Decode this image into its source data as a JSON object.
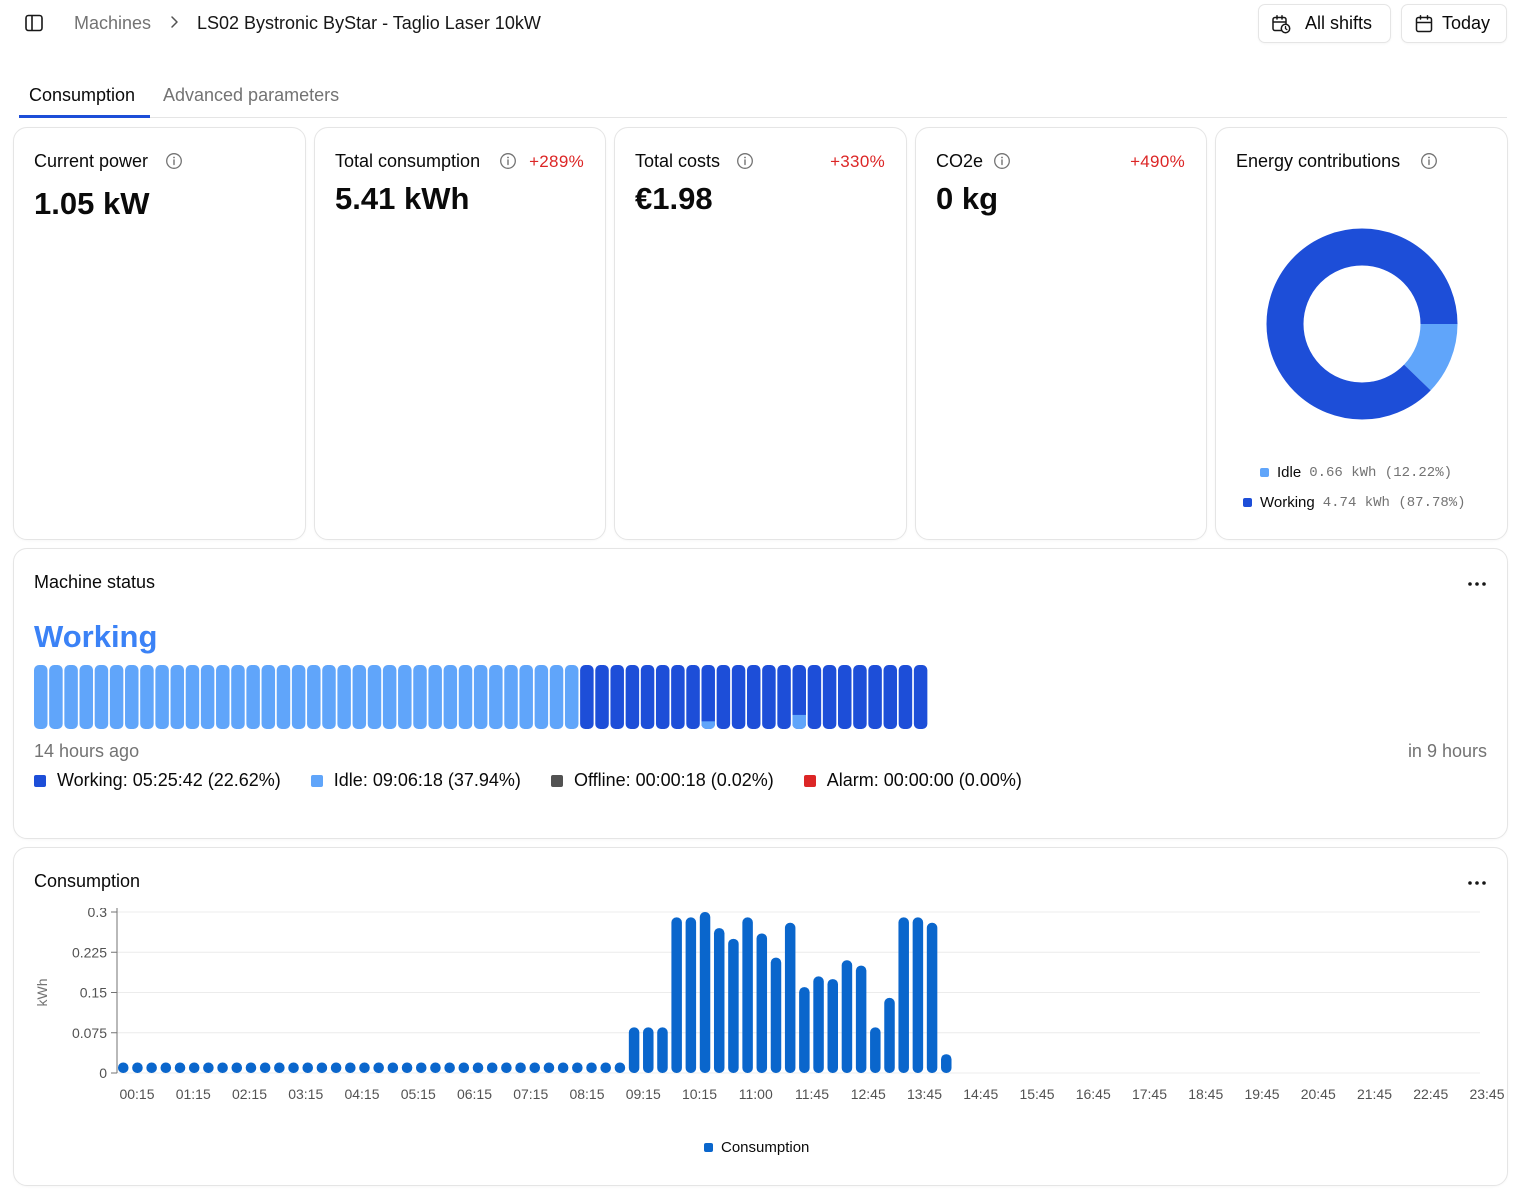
{
  "breadcrumb": {
    "root": "Machines",
    "current": "LS02 Bystronic ByStar - Taglio Laser 10kW"
  },
  "header_buttons": {
    "shifts_label": "All shifts",
    "date_label": "Today"
  },
  "tabs": [
    {
      "label": "Consumption",
      "active": true
    },
    {
      "label": "Advanced parameters",
      "active": false
    }
  ],
  "kpis": {
    "current_power": {
      "title": "Current power",
      "value": "1.05 kW"
    },
    "total_consumption": {
      "title": "Total consumption",
      "value": "5.41 kWh",
      "delta": "+289%"
    },
    "total_costs": {
      "title": "Total costs",
      "value": "€1.98",
      "delta": "+330%"
    },
    "co2e": {
      "title": "CO2e",
      "value": "0 kg",
      "delta": "+490%"
    }
  },
  "energy": {
    "title": "Energy contributions",
    "items": [
      {
        "label": "Idle",
        "value": "0.66 kWh (12.22%)",
        "share": 12.22,
        "color": "#60a5fa"
      },
      {
        "label": "Working",
        "value": "4.74 kWh (87.78%)",
        "share": 87.78,
        "color": "#1d4ed8"
      }
    ]
  },
  "machine_status": {
    "title": "Machine status",
    "current": "Working",
    "time_start": "14 hours ago",
    "time_end": "in 9 hours",
    "legend": [
      {
        "label": "Working: 05:25:42 (22.62%)",
        "color": "#1d4ed8"
      },
      {
        "label": "Idle: 09:06:18 (37.94%)",
        "color": "#60a5fa"
      },
      {
        "label": "Offline: 00:00:18 (0.02%)",
        "color": "#525252"
      },
      {
        "label": "Alarm: 00:00:00 (0.00%)",
        "color": "#dc2626"
      }
    ],
    "segments": [
      "idle",
      "idle",
      "idle",
      "idle",
      "idle",
      "idle",
      "idle",
      "idle",
      "idle",
      "idle",
      "idle",
      "idle",
      "idle",
      "idle",
      "idle",
      "idle",
      "idle",
      "idle",
      "idle",
      "idle",
      "idle",
      "idle",
      "idle",
      "idle",
      "idle",
      "idle",
      "idle",
      "idle",
      "idle",
      "idle",
      "idle",
      "idle",
      "idle",
      "idle",
      "idle",
      "idle",
      "working",
      "working",
      "working",
      "working",
      "working",
      "working",
      "working",
      "working",
      "mixed-low",
      "working",
      "working",
      "working",
      "working",
      "working",
      "mixed-mid",
      "working",
      "working",
      "working",
      "working",
      "working",
      "working",
      "working",
      "working"
    ]
  },
  "consumption_chart": {
    "title": "Consumption",
    "legend_label": "Consumption"
  },
  "chart_data": {
    "type": "bar",
    "title": "Consumption",
    "ylabel": "kWh",
    "xlabel": "",
    "ylim": [
      0,
      0.3
    ],
    "yticks": [
      "0",
      "0.075",
      "0.15",
      "0.225",
      "0.3"
    ],
    "xtick_labels": [
      "00:15",
      "01:15",
      "02:15",
      "03:15",
      "04:15",
      "05:15",
      "06:15",
      "07:15",
      "08:15",
      "09:15",
      "10:15",
      "11:00",
      "11:45",
      "12:45",
      "13:45",
      "14:45",
      "15:45",
      "16:45",
      "17:45",
      "18:45",
      "19:45",
      "20:45",
      "21:45",
      "22:45",
      "23:45"
    ],
    "series": [
      {
        "name": "Consumption",
        "color": "#0a66cc",
        "values": [
          0.01,
          0.01,
          0.01,
          0.01,
          0.01,
          0.01,
          0.01,
          0.01,
          0.01,
          0.01,
          0.01,
          0.01,
          0.01,
          0.01,
          0.01,
          0.01,
          0.01,
          0.01,
          0.01,
          0.01,
          0.01,
          0.01,
          0.01,
          0.01,
          0.01,
          0.01,
          0.01,
          0.01,
          0.01,
          0.01,
          0.01,
          0.01,
          0.01,
          0.01,
          0.01,
          0.01,
          0.085,
          0.085,
          0.085,
          0.29,
          0.29,
          0.3,
          0.27,
          0.25,
          0.29,
          0.26,
          0.215,
          0.28,
          0.16,
          0.18,
          0.175,
          0.21,
          0.2,
          0.085,
          0.14,
          0.29,
          0.29,
          0.28,
          0.035
        ]
      }
    ],
    "legend": "bottom-center",
    "grid": true
  }
}
